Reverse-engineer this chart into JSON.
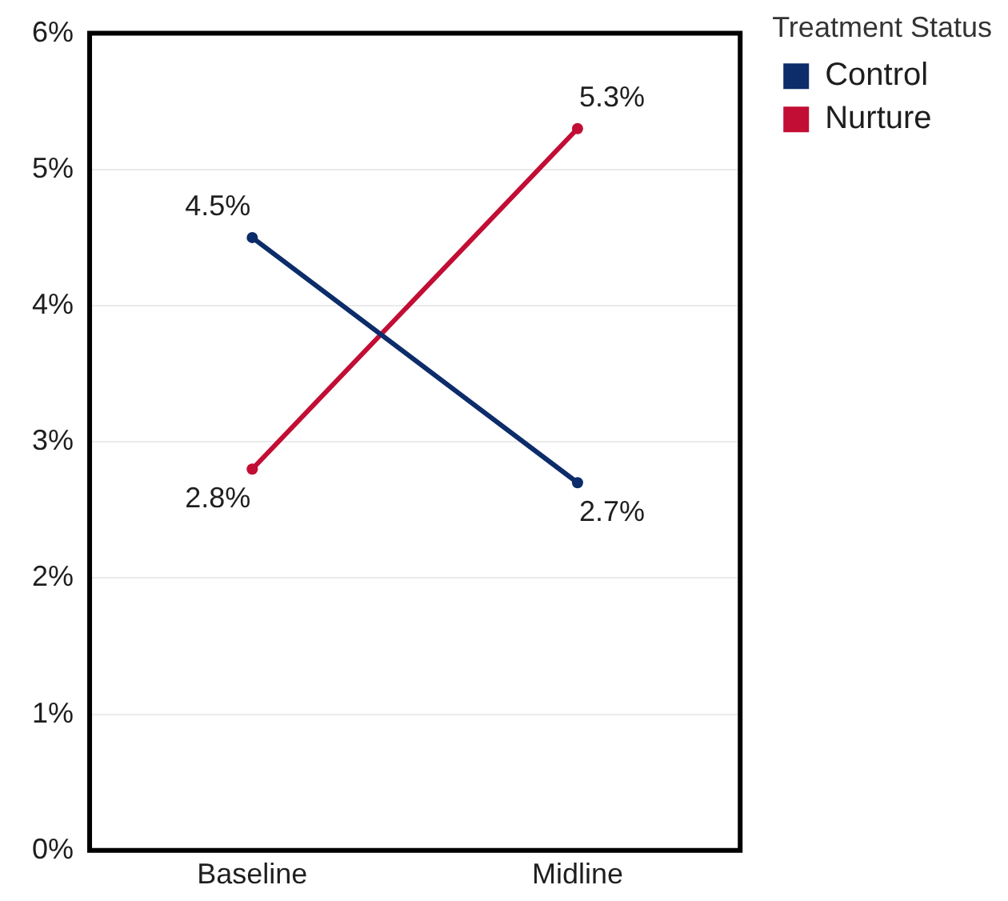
{
  "chart_data": {
    "type": "line",
    "legend_title": "Treatment Status",
    "categories": [
      "Baseline",
      "Midline"
    ],
    "series": [
      {
        "name": "Control",
        "color": "#0c2c6a",
        "values": [
          4.5,
          2.7
        ],
        "value_labels": [
          "4.5%",
          "2.7%"
        ]
      },
      {
        "name": "Nurture",
        "color": "#c20e34",
        "values": [
          2.8,
          5.3
        ],
        "value_labels": [
          "2.8%",
          "5.3%"
        ]
      }
    ],
    "ylim": [
      0,
      6
    ],
    "yticks": [
      {
        "value": 0,
        "label": "0%"
      },
      {
        "value": 1,
        "label": "1%"
      },
      {
        "value": 2,
        "label": "2%"
      },
      {
        "value": 3,
        "label": "3%"
      },
      {
        "value": 4,
        "label": "4%"
      },
      {
        "value": 5,
        "label": "5%"
      },
      {
        "value": 6,
        "label": "6%"
      }
    ],
    "grid": "y",
    "legend": "top right",
    "marker": "circle",
    "line_style": "solid"
  }
}
